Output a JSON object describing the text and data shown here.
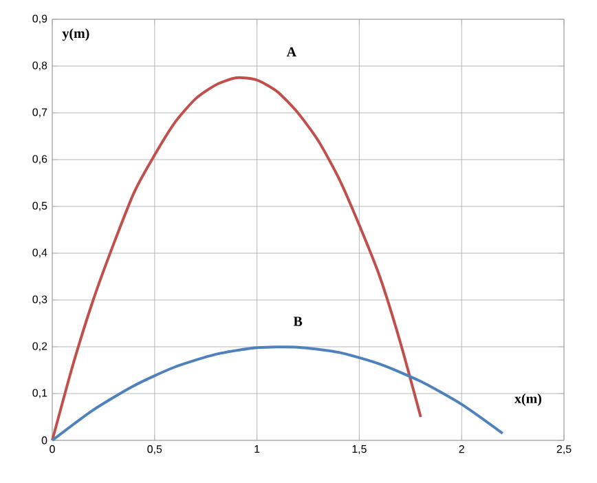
{
  "chart_data": {
    "type": "line",
    "xlabel": "x(m)",
    "ylabel": "y(m)",
    "xlim": [
      0,
      2.5
    ],
    "ylim": [
      0,
      0.9
    ],
    "xticks": [
      0,
      {
        "value": 0.5,
        "label": "0,5"
      },
      1,
      {
        "value": 1.5,
        "label": "1,5"
      },
      2,
      {
        "value": 2.5,
        "label": "2,5"
      }
    ],
    "yticks": [
      0,
      {
        "value": 0.1,
        "label": "0,1"
      },
      {
        "value": 0.2,
        "label": "0,2"
      },
      {
        "value": 0.3,
        "label": "0,3"
      },
      {
        "value": 0.4,
        "label": "0,4"
      },
      {
        "value": 0.5,
        "label": "0,5"
      },
      {
        "value": 0.6,
        "label": "0,6"
      },
      {
        "value": 0.7,
        "label": "0,7"
      },
      {
        "value": 0.8,
        "label": "0,8"
      },
      {
        "value": 0.9,
        "label": "0,9"
      }
    ],
    "grid": true,
    "marker": "none",
    "line_style": "solid",
    "series": [
      {
        "name": "A",
        "color": "#c0504d",
        "x": [
          0,
          0.1,
          0.2,
          0.3,
          0.4,
          0.5,
          0.6,
          0.7,
          0.8,
          0.9,
          1.0,
          1.1,
          1.2,
          1.3,
          1.4,
          1.5,
          1.6,
          1.7,
          1.8
        ],
        "values": [
          0,
          0.16,
          0.3,
          0.42,
          0.53,
          0.61,
          0.68,
          0.73,
          0.76,
          0.775,
          0.77,
          0.745,
          0.7,
          0.64,
          0.56,
          0.46,
          0.35,
          0.21,
          0.05
        ]
      },
      {
        "name": "B",
        "color": "#4f81bd",
        "x": [
          0,
          0.2,
          0.4,
          0.6,
          0.8,
          1.0,
          1.2,
          1.4,
          1.6,
          1.8,
          2.0,
          2.2
        ],
        "values": [
          0,
          0.065,
          0.117,
          0.157,
          0.184,
          0.198,
          0.199,
          0.188,
          0.163,
          0.126,
          0.077,
          0.015
        ]
      }
    ]
  }
}
